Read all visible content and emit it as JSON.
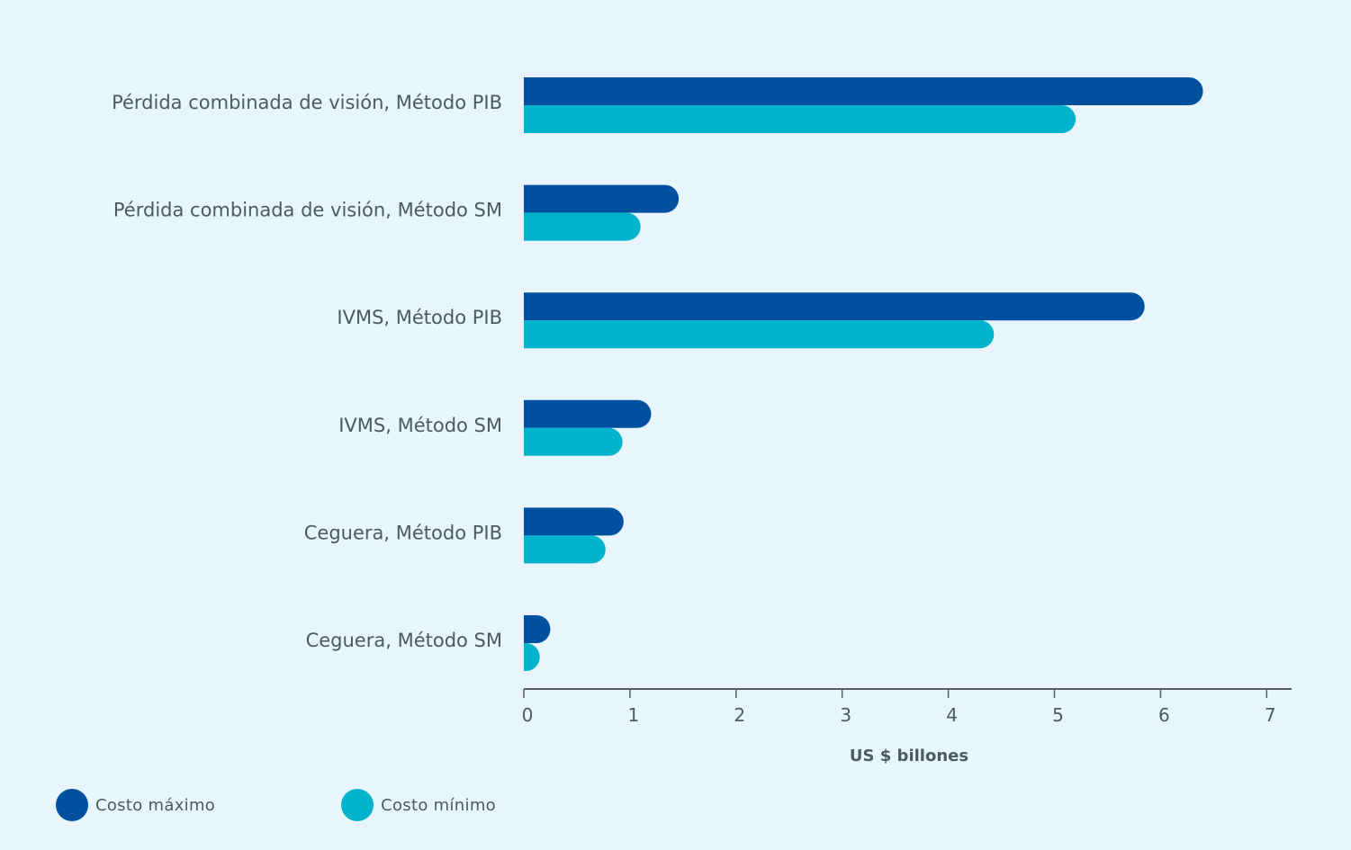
{
  "chart_data": {
    "type": "bar",
    "orientation": "horizontal",
    "categories": [
      "Pérdida combinada de visión, Método PIB",
      "Pérdida combinada de visión, Método SM",
      "IVMS, Método PIB",
      "IVMS, Método SM",
      "Ceguera, Método PIB",
      "Ceguera, Método SM"
    ],
    "series": [
      {
        "name": "Costo máximo",
        "color": "#0050a0",
        "values": [
          6.4,
          1.46,
          5.85,
          1.2,
          0.94,
          0.25
        ]
      },
      {
        "name": "Costo mínimo",
        "color": "#00b4cc",
        "values": [
          5.2,
          1.1,
          4.43,
          0.93,
          0.77,
          0.15
        ]
      }
    ],
    "xlabel": "US $ billones",
    "xticks": [
      0,
      1,
      2,
      3,
      4,
      5,
      6,
      7
    ],
    "xlim": [
      0,
      7.2
    ],
    "grid": false,
    "legend_position": "bottom-left"
  }
}
